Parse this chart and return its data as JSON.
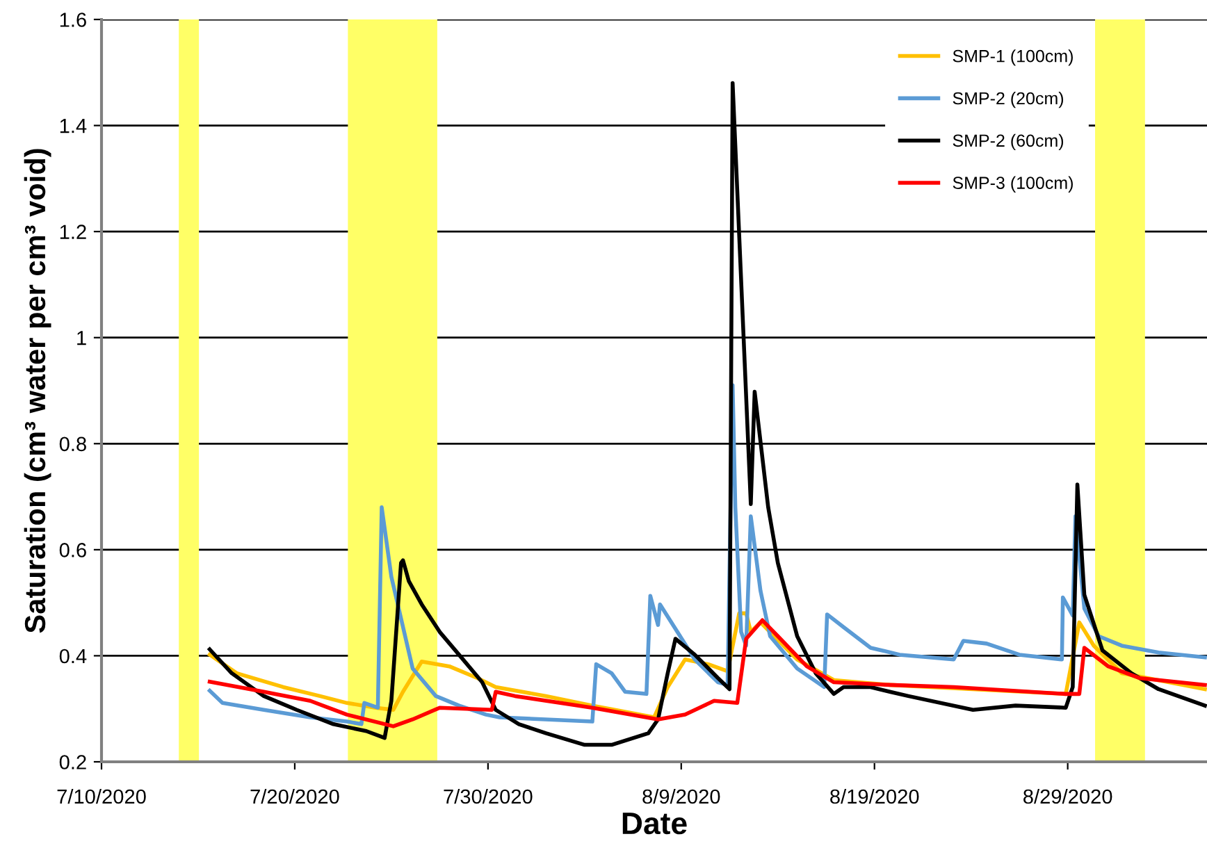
{
  "chart_data": {
    "type": "line",
    "xlabel": "Date",
    "ylabel": "Saturation (cm³ water per cm³ void)",
    "xlim": [
      "2020-07-10",
      "2020-09-05T05:00"
    ],
    "xticks": [
      {
        "value": "2020-07-10",
        "label": "7/10/2020"
      },
      {
        "value": "2020-07-20",
        "label": "7/20/2020"
      },
      {
        "value": "2020-07-30",
        "label": "7/30/2020"
      },
      {
        "value": "2020-08-09",
        "label": "8/9/2020"
      },
      {
        "value": "2020-08-19",
        "label": "8/19/2020"
      },
      {
        "value": "2020-08-29",
        "label": "8/29/2020"
      }
    ],
    "ylim": [
      0.2,
      1.6
    ],
    "yticks": [
      0.2,
      0.4,
      0.6,
      0.8,
      1,
      1.2,
      1.4,
      1.6
    ],
    "grid": "y",
    "legend": "top right",
    "marker": "none",
    "line_style": "solid",
    "bands": [
      {
        "axis": "x",
        "from": "2020-07-14T00:00",
        "to": "2020-07-15T01:00",
        "color": "#ffff66"
      },
      {
        "axis": "x",
        "from": "2020-07-22T18:00",
        "to": "2020-07-27T09:00",
        "color": "#ffff66"
      },
      {
        "axis": "x",
        "from": "2020-08-30T10:00",
        "to": "2020-09-02T00:00",
        "color": "#ffff66"
      }
    ],
    "series": [
      {
        "name": "SMP-1 (100cm)",
        "color": "#ffc000",
        "x": [
          "2020-07-15T14:24",
          "2020-07-17T00:00",
          "2020-07-19T09:36",
          "2020-07-21T07:12",
          "2020-07-22T16:48",
          "2020-07-24T04:48",
          "2020-07-25T02:24",
          "2020-07-25T14:24",
          "2020-07-26T13:40",
          "2020-07-28T00:00",
          "2020-07-29T10:48",
          "2020-07-30T09:36",
          "2020-08-02T00:00",
          "2020-08-04T09:36",
          "2020-08-07T14:24",
          "2020-08-08T07:12",
          "2020-08-09T04:48",
          "2020-08-10T09:36",
          "2020-08-11T09:36",
          "2020-08-12T00:00",
          "2020-08-12T08:38",
          "2020-08-12T14:24",
          "2020-08-13T02:24",
          "2020-08-15T00:00",
          "2020-08-16T21:36",
          "2020-08-19T19:12",
          "2020-08-28T21:36",
          "2020-08-29T14:24",
          "2020-08-30T08:24",
          "2020-08-31T19:12",
          "2020-09-05T02:24"
        ],
        "values": [
          0.402,
          0.367,
          0.341,
          0.324,
          0.311,
          0.302,
          0.298,
          0.332,
          0.389,
          0.38,
          0.358,
          0.341,
          0.324,
          0.306,
          0.284,
          0.341,
          0.393,
          0.384,
          0.371,
          0.48,
          0.48,
          0.445,
          0.463,
          0.393,
          0.354,
          0.345,
          0.328,
          0.463,
          0.419,
          0.367,
          0.337
        ]
      },
      {
        "name": "SMP-2 (20cm)",
        "color": "#5b9bd5",
        "x": [
          "2020-07-15T14:24",
          "2020-07-16T06:14",
          "2020-07-18T09:36",
          "2020-07-20T19:12",
          "2020-07-22T16:48",
          "2020-07-23T10:48",
          "2020-07-23T14:24",
          "2020-07-24T07:12",
          "2020-07-24T12:00",
          "2020-07-25T00:00",
          "2020-07-26T02:24",
          "2020-07-27T07:12",
          "2020-07-28T12:00",
          "2020-07-29T21:36",
          "2020-07-30T14:24",
          "2020-08-04T09:36",
          "2020-08-04T14:24",
          "2020-08-05T09:36",
          "2020-08-06T02:24",
          "2020-08-07T04:48",
          "2020-08-07T09:36",
          "2020-08-07T19:12",
          "2020-08-07T21:36",
          "2020-08-08T19:12",
          "2020-08-09T16:48",
          "2020-08-10T21:36",
          "2020-08-11T09:36",
          "2020-08-11T15:50",
          "2020-08-11T19:12",
          "2020-08-12T02:24",
          "2020-08-12T08:38",
          "2020-08-12T14:24",
          "2020-08-13T02:24",
          "2020-08-13T14:24",
          "2020-08-15T00:00",
          "2020-08-16T09:36",
          "2020-08-16T13:12",
          "2020-08-17T09:36",
          "2020-08-18T19:12",
          "2020-08-20T07:12",
          "2020-08-23T02:24",
          "2020-08-23T14:24",
          "2020-08-24T19:12",
          "2020-08-26T12:00",
          "2020-08-28T16:48",
          "2020-08-28T18:00",
          "2020-08-29T06:14",
          "2020-08-29T09:36",
          "2020-08-29T20:38",
          "2020-08-30T14:24",
          "2020-08-31T19:12",
          "2020-09-02T16:48",
          "2020-09-05T02:24"
        ],
        "values": [
          0.334,
          0.311,
          0.298,
          0.284,
          0.276,
          0.271,
          0.311,
          0.302,
          0.68,
          0.549,
          0.376,
          0.324,
          0.306,
          0.289,
          0.284,
          0.276,
          0.384,
          0.367,
          0.332,
          0.328,
          0.513,
          0.458,
          0.497,
          0.445,
          0.393,
          0.35,
          0.345,
          0.91,
          0.68,
          0.445,
          0.419,
          0.663,
          0.523,
          0.437,
          0.376,
          0.341,
          0.478,
          0.454,
          0.415,
          0.402,
          0.393,
          0.428,
          0.423,
          0.402,
          0.393,
          0.51,
          0.476,
          0.663,
          0.489,
          0.437,
          0.419,
          0.406,
          0.397
        ]
      },
      {
        "name": "SMP-2 (60cm)",
        "color": "#000000",
        "x": [
          "2020-07-15T14:24",
          "2020-07-16T17:46",
          "2020-07-18T09:36",
          "2020-07-20T02:24",
          "2020-07-22T00:00",
          "2020-07-23T16:48",
          "2020-07-24T15:36",
          "2020-07-25T00:00",
          "2020-07-25T12:00",
          "2020-07-25T14:24",
          "2020-07-25T21:36",
          "2020-07-26T13:40",
          "2020-07-27T12:00",
          "2020-07-28T12:00",
          "2020-07-29T16:48",
          "2020-07-30T09:36",
          "2020-07-31T14:24",
          "2020-08-02T00:00",
          "2020-08-04T00:00",
          "2020-08-05T09:36",
          "2020-08-07T07:12",
          "2020-08-07T19:12",
          "2020-08-08T07:12",
          "2020-08-08T16:48",
          "2020-08-09T16:48",
          "2020-08-10T21:36",
          "2020-08-11T12:00",
          "2020-08-11T15:50",
          "2020-08-12T14:24",
          "2020-08-12T19:12",
          "2020-08-13T12:00",
          "2020-08-14T00:00",
          "2020-08-15T00:00",
          "2020-08-15T23:02",
          "2020-08-16T21:36",
          "2020-08-17T09:36",
          "2020-08-18T19:12",
          "2020-08-19T19:12",
          "2020-08-20T18:00",
          "2020-08-24T02:24",
          "2020-08-26T07:12",
          "2020-08-28T21:36",
          "2020-08-29T06:14",
          "2020-08-29T12:00",
          "2020-08-29T20:38",
          "2020-08-30T19:12",
          "2020-09-01T07:12",
          "2020-09-02T16:48",
          "2020-09-05T02:24"
        ],
        "values": [
          0.412,
          0.367,
          0.324,
          0.298,
          0.271,
          0.258,
          0.245,
          0.315,
          0.575,
          0.58,
          0.541,
          0.497,
          0.445,
          0.402,
          0.35,
          0.298,
          0.271,
          0.254,
          0.232,
          0.232,
          0.254,
          0.28,
          0.367,
          0.432,
          0.402,
          0.358,
          0.337,
          1.48,
          0.686,
          0.898,
          0.68,
          0.575,
          0.437,
          0.367,
          0.328,
          0.341,
          0.341,
          0.332,
          0.324,
          0.298,
          0.306,
          0.302,
          0.341,
          0.723,
          0.515,
          0.41,
          0.367,
          0.337,
          0.306
        ]
      },
      {
        "name": "SMP-3 (100cm)",
        "color": "#ff0000",
        "x": [
          "2020-07-15T14:24",
          "2020-07-18T09:36",
          "2020-07-20T19:12",
          "2020-07-22T16:48",
          "2020-07-25T02:24",
          "2020-07-26T02:24",
          "2020-07-27T12:00",
          "2020-07-30T04:48",
          "2020-07-30T09:36",
          "2020-07-31T09:36",
          "2020-08-04T09:36",
          "2020-08-07T19:12",
          "2020-08-09T04:48",
          "2020-08-10T16:48",
          "2020-08-11T21:36",
          "2020-08-12T08:38",
          "2020-08-13T04:48",
          "2020-08-14T00:00",
          "2020-08-15T12:00",
          "2020-08-16T21:36",
          "2020-08-19T19:12",
          "2020-08-23T02:24",
          "2020-08-28T21:36",
          "2020-08-29T14:24",
          "2020-08-29T20:38",
          "2020-08-31T02:24",
          "2020-09-01T16:48",
          "2020-09-05T02:24"
        ],
        "values": [
          0.351,
          0.332,
          0.315,
          0.289,
          0.267,
          0.28,
          0.302,
          0.298,
          0.332,
          0.324,
          0.302,
          0.28,
          0.289,
          0.315,
          0.311,
          0.432,
          0.467,
          0.437,
          0.38,
          0.35,
          0.345,
          0.341,
          0.328,
          0.328,
          0.415,
          0.38,
          0.358,
          0.345
        ]
      }
    ]
  }
}
